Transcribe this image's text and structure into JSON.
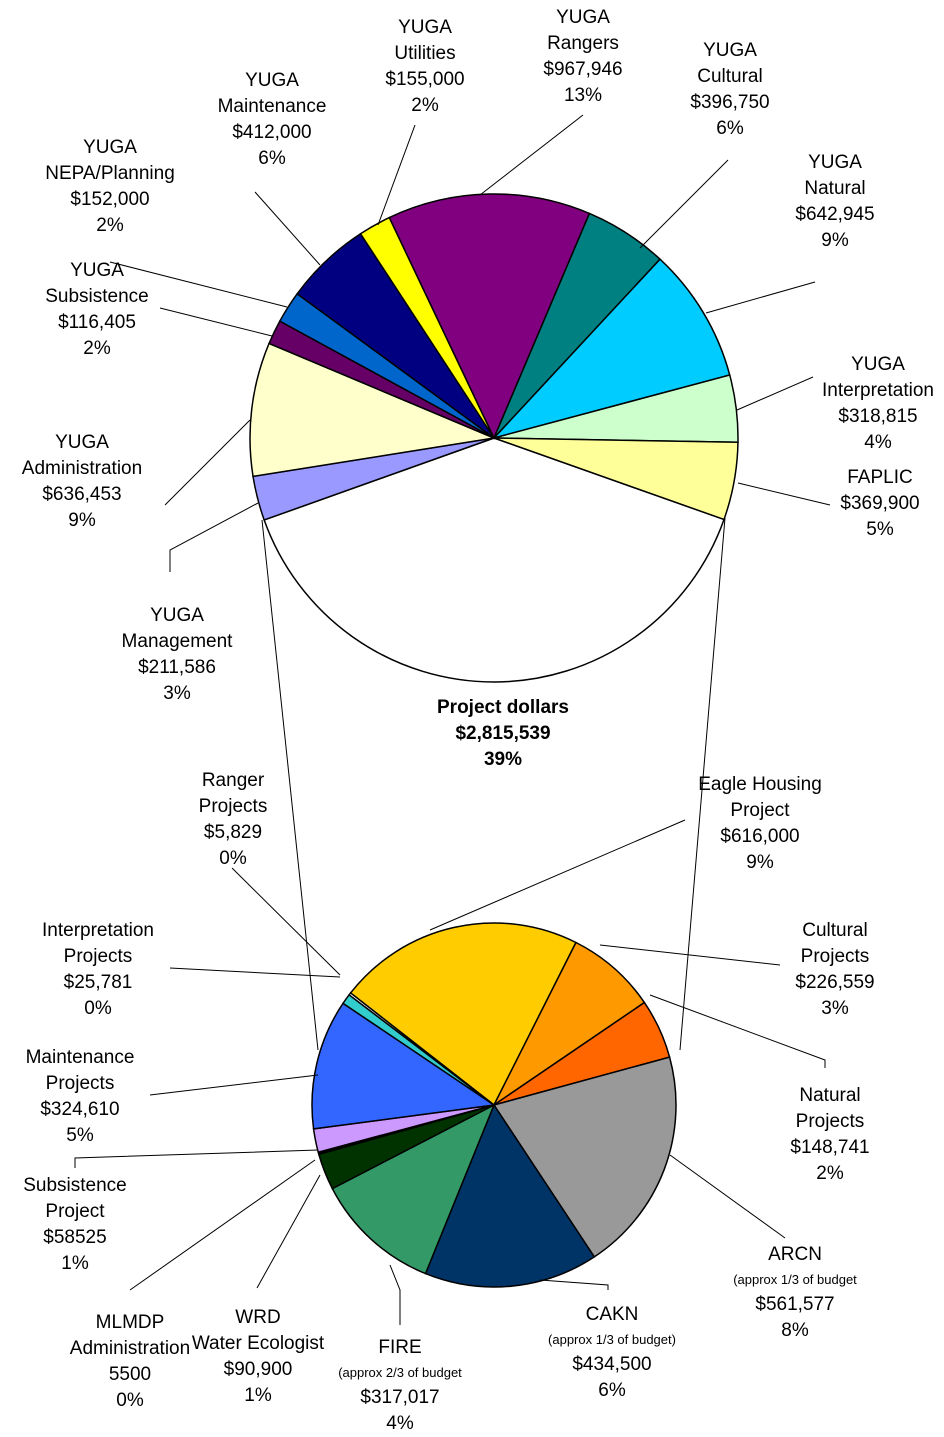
{
  "chart_data": [
    {
      "type": "pie",
      "categories": [
        "Project dollars",
        "YUGA\nManagement",
        "YUGA\nAdministration",
        "YUGA\nSubsistence",
        "YUGA\nNEPA/Planning",
        "YUGA\nMaintenance",
        "YUGA\nUtilities",
        "YUGA\nRangers",
        "YUGA\nCultural",
        "YUGA\nNatural",
        "YUGA\nInterpretation",
        "FAPLIC"
      ],
      "values": [
        2815539,
        211586,
        636453,
        116405,
        152000,
        412000,
        155000,
        967946,
        396750,
        642945,
        318815,
        369900
      ],
      "value_labels": [
        "$2,815,539",
        "$211,586",
        "$636,453",
        "$116,405",
        "$152,000",
        "$412,000",
        "$155,000",
        "$967,946",
        "$396,750",
        "$642,945",
        "$318,815",
        "$369,900"
      ],
      "percents": [
        39,
        3,
        9,
        2,
        2,
        6,
        2,
        13,
        6,
        9,
        4,
        5
      ],
      "percent_labels": [
        "39%",
        "3%",
        "9%",
        "2%",
        "2%",
        "6%",
        "2%",
        "13%",
        "6%",
        "9%",
        "4%",
        "5%"
      ],
      "colors": [
        "#ffffff",
        "#9999ff",
        "#ffffcc",
        "#660066",
        "#0066cc",
        "#000080",
        "#ffff00",
        "#800080",
        "#008080",
        "#00ccff",
        "#ccffcc",
        "#ffff99"
      ]
    },
    {
      "type": "pie",
      "categories": [
        "Eagle Housing\nProject",
        "Cultural\nProjects",
        "Natural\nProjects",
        "ARCN",
        "CAKN",
        "FIRE",
        "WRD\nWater Ecologist",
        "MLMDP\nAdministration",
        "Subsistence\nProject",
        "Maintenance\nProjects",
        "Interpretation\nProjects",
        "Ranger\nProjects"
      ],
      "notes": [
        null,
        null,
        null,
        "(approx 1/3 of budget",
        "(approx 1/3 of budget)",
        "(approx 2/3 of budget",
        null,
        null,
        null,
        null,
        null,
        null
      ],
      "values": [
        616000,
        226559,
        148741,
        561577,
        434500,
        317017,
        90900,
        5500,
        58525,
        324610,
        25781,
        5829
      ],
      "value_labels": [
        "$616,000",
        "$226,559",
        "$148,741",
        "$561,577",
        "$434,500",
        "$317,017",
        "$90,900",
        "5500",
        "$58525",
        "$324,610",
        "$25,781",
        "$5,829"
      ],
      "percents": [
        9,
        3,
        2,
        8,
        6,
        4,
        1,
        0,
        1,
        5,
        0,
        0
      ],
      "percent_labels": [
        "9%",
        "3%",
        "2%",
        "8%",
        "6%",
        "4%",
        "1%",
        "0%",
        "1%",
        "5%",
        "0%",
        "0%"
      ],
      "colors": [
        "#ffcc00",
        "#ff9900",
        "#ff6600",
        "#999999",
        "#003366",
        "#339966",
        "#003300",
        "#000000",
        "#cc99ff",
        "#3366ff",
        "#33cccc",
        "#ffffff"
      ]
    }
  ]
}
